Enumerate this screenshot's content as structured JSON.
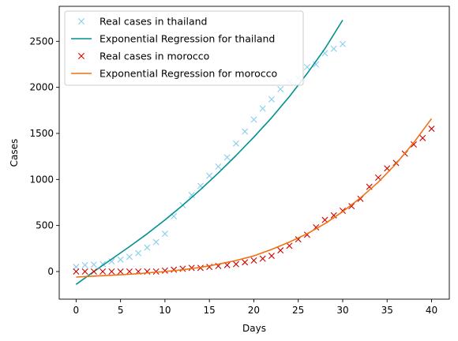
{
  "chart_data": {
    "type": "line",
    "xlabel": "Days",
    "ylabel": "Cases",
    "xlim": [
      -1.9,
      42
    ],
    "ylim": [
      -300,
      2880
    ],
    "xticks": [
      0,
      5,
      10,
      15,
      20,
      25,
      30,
      35,
      40
    ],
    "yticks": [
      0,
      500,
      1000,
      1500,
      2000,
      2500
    ],
    "grid": false,
    "legend_position": "top-left",
    "series": [
      {
        "name": "Real cases in thailand",
        "kind": "scatter",
        "marker": "x",
        "color": "#87ceeb",
        "x": [
          0,
          1,
          2,
          3,
          4,
          5,
          6,
          7,
          8,
          9,
          10,
          11,
          12,
          13,
          14,
          15,
          16,
          17,
          18,
          19,
          20,
          21,
          22,
          23,
          24,
          25,
          26,
          27,
          28,
          29,
          30
        ],
        "y": [
          50,
          70,
          75,
          80,
          110,
          130,
          160,
          200,
          260,
          320,
          410,
          600,
          720,
          830,
          930,
          1040,
          1140,
          1240,
          1390,
          1520,
          1650,
          1770,
          1870,
          1980,
          2060,
          2100,
          2220,
          2250,
          2370,
          2420,
          2470
        ]
      },
      {
        "name": "Exponential Regression for thailand",
        "kind": "line",
        "color": "#009090",
        "x": [
          0,
          2,
          4,
          6,
          8,
          10,
          12,
          14,
          16,
          18,
          20,
          22,
          24,
          26,
          28,
          30
        ],
        "y": [
          -140,
          0,
          135,
          270,
          410,
          560,
          720,
          890,
          1070,
          1260,
          1460,
          1670,
          1900,
          2150,
          2420,
          2730
        ]
      },
      {
        "name": "Real cases in morocco",
        "kind": "scatter",
        "marker": "x",
        "color": "#d00000",
        "x": [
          0,
          1,
          2,
          3,
          4,
          5,
          6,
          7,
          8,
          9,
          10,
          11,
          12,
          13,
          14,
          15,
          16,
          17,
          18,
          19,
          20,
          21,
          22,
          23,
          24,
          25,
          26,
          27,
          28,
          29,
          30,
          31,
          32,
          33,
          34,
          35,
          36,
          37,
          38,
          39,
          40
        ],
        "y": [
          0,
          0,
          0,
          0,
          0,
          0,
          0,
          0,
          0,
          0,
          10,
          20,
          30,
          40,
          40,
          50,
          60,
          70,
          80,
          100,
          120,
          140,
          170,
          230,
          280,
          350,
          400,
          480,
          560,
          610,
          660,
          710,
          790,
          920,
          1020,
          1120,
          1180,
          1280,
          1380,
          1450,
          1550
        ]
      },
      {
        "name": "Exponential Regression for morocco",
        "kind": "line",
        "color": "#f07010",
        "x": [
          0,
          2,
          4,
          6,
          8,
          10,
          12,
          14,
          16,
          18,
          20,
          22,
          24,
          26,
          28,
          30,
          32,
          34,
          36,
          38,
          40
        ],
        "y": [
          -60,
          -50,
          -40,
          -30,
          -15,
          0,
          20,
          45,
          80,
          120,
          170,
          240,
          320,
          410,
          520,
          650,
          800,
          970,
          1170,
          1400,
          1660
        ]
      }
    ]
  }
}
